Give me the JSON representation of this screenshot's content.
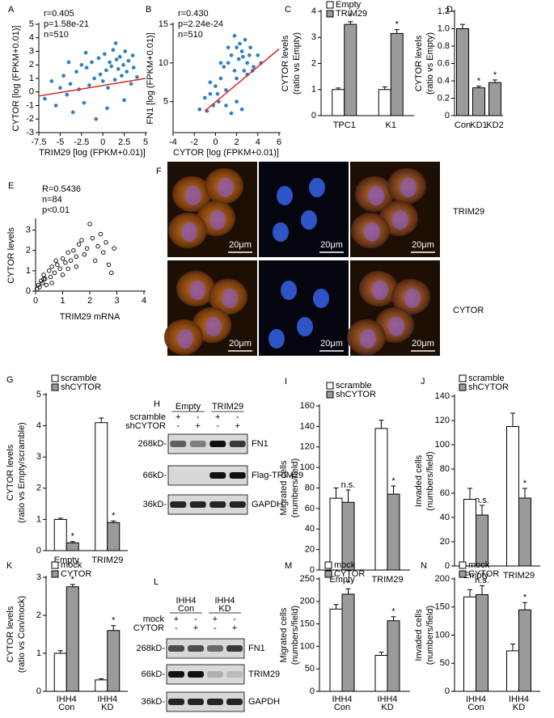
{
  "chart_data": [
    {
      "panel": "A",
      "type": "scatter",
      "annotations": [
        "r=0.405",
        "p=1.58e-21",
        "n=510"
      ],
      "xlabel": "TRIM29 [log (FPKM+0.01)]",
      "ylabel": [
        "CYTOR [log (FPKM+0.01)]"
      ],
      "x": [
        -6.8,
        -6,
        -5.5,
        -5,
        -4.6,
        -4.2,
        -3.8,
        -3.5,
        -3.1,
        -2.8,
        -2.5,
        -2.2,
        -1.9,
        -1.6,
        -1.3,
        -1,
        -0.8,
        -0.5,
        -0.3,
        0,
        0.2,
        0.4,
        0.6,
        0.8,
        1,
        1.2,
        1.4,
        1.6,
        1.8,
        2,
        2.2,
        2.4,
        2.6,
        2.8,
        3,
        3.3,
        3.6,
        4,
        -4,
        -2,
        0.5,
        1.5,
        2.5,
        3.5
      ],
      "y": [
        -0.5,
        0.8,
        -1,
        0.3,
        1.2,
        -0.2,
        0.6,
        -1.5,
        1.5,
        0.2,
        2,
        -0.8,
        1.8,
        0.5,
        2.2,
        1,
        -2,
        2.5,
        1.3,
        0.8,
        2.8,
        1.6,
        0.3,
        2.2,
        1.9,
        3.1,
        0.9,
        2.4,
        1.7,
        2.6,
        1.2,
        2,
        3,
        1.5,
        2.3,
        0.6,
        1.8,
        1.1,
        2.2,
        2.9,
        -1.2,
        3.6,
        -0.6,
        2.7
      ],
      "color": "#2f7fc1",
      "fit_x": [
        -7.5,
        5
      ],
      "fit_y": [
        -0.3,
        1
      ],
      "fit_color": "#e0252b",
      "xlim": [
        -7.5,
        5
      ],
      "xticks": [
        -7.5,
        -5,
        -2.5,
        0,
        2.5,
        5
      ],
      "ylim": [
        -3,
        5
      ],
      "yticks": [
        -3,
        -2,
        -1,
        0,
        1,
        2,
        3,
        4,
        5
      ]
    },
    {
      "panel": "B",
      "type": "scatter",
      "annotations": [
        "r=0.430",
        "p=2.24e-24",
        "n=510"
      ],
      "xlabel": "CYTOR [log (FPKM+0.01)]",
      "ylabel": [
        "FN1 [log (FPKM+0.01)]"
      ],
      "x": [
        -1.5,
        -1,
        -0.8,
        -0.5,
        -0.2,
        0,
        0.3,
        0.5,
        0.8,
        1,
        1.2,
        1.5,
        1.8,
        2,
        2.2,
        2.5,
        2.8,
        3,
        3.3,
        3.6,
        4,
        1,
        1.5,
        2,
        2.5,
        3,
        0.5,
        1.8,
        2.3,
        2.7,
        3.2,
        -0.5,
        0.2,
        1.2,
        2,
        2.6,
        3.5,
        4.3
      ],
      "y": [
        4,
        5.5,
        3.8,
        6,
        4.5,
        7,
        5,
        8,
        9.5,
        6.5,
        10,
        11,
        9,
        12,
        10.5,
        11.5,
        13,
        10,
        12,
        9.5,
        11,
        4.5,
        3.5,
        5,
        4,
        8.5,
        10,
        13.5,
        12.5,
        9,
        11,
        7.5,
        6,
        12,
        8,
        10.8,
        9,
        10
      ],
      "color": "#2f7fc1",
      "fit_x": [
        -1,
        6
      ],
      "fit_y": [
        3.8,
        11.8
      ],
      "fit_color": "#e0252b",
      "xlim": [
        -4,
        6
      ],
      "xticks": [
        -4,
        -2,
        0,
        2,
        4,
        6
      ],
      "ylim": [
        1,
        15
      ],
      "yticks": [
        5,
        10,
        15
      ]
    },
    {
      "panel": "C",
      "type": "bar",
      "ylabel": [
        "CYTOR levels",
        "(ratio vs Empty)"
      ],
      "categories": [
        "TPC1",
        "K1"
      ],
      "series": [
        {
          "name": "Empty",
          "color": "#ffffff",
          "values": [
            1,
            1
          ],
          "errors": [
            0.06,
            0.1
          ]
        },
        {
          "name": "TRIM29",
          "color": "#9a9a9a",
          "values": [
            3.5,
            3.15
          ],
          "errors": [
            0.1,
            0.15
          ],
          "sig": [
            "*",
            "*"
          ]
        }
      ],
      "ylim": [
        0,
        4
      ],
      "yticks": [
        0,
        1,
        2,
        3,
        4
      ]
    },
    {
      "panel": "D",
      "type": "bar",
      "ylabel": [
        "CYTOR levels",
        "(ratio vs Empty)"
      ],
      "categories": [
        "Con",
        "KD1",
        "KD2"
      ],
      "series": [
        {
          "color": "#9a9a9a",
          "values": [
            1,
            0.32,
            0.38
          ],
          "errors": [
            0.05,
            0.02,
            0.03
          ],
          "sig": [
            null,
            "*",
            "*"
          ]
        }
      ],
      "ylim": [
        0,
        1.2
      ],
      "yticks": [
        0,
        0.2,
        0.4,
        0.6,
        0.8,
        {
          "value": 1,
          "label": "1.0"
        },
        1.2
      ]
    },
    {
      "panel": "E",
      "type": "scatter",
      "annotations": [
        "R=0.5436",
        "n=84",
        "p<0.01"
      ],
      "xlabel": "TRIM29 mRNA",
      "ylabel": [
        "CYTOR levels"
      ],
      "x": [
        0.05,
        0.1,
        0.15,
        0.2,
        0.25,
        0.3,
        0.35,
        0.4,
        0.5,
        0.55,
        0.6,
        0.7,
        0.75,
        0.8,
        0.9,
        1,
        1,
        1.1,
        1.2,
        1.3,
        1.4,
        1.5,
        1.5,
        1.6,
        1.7,
        1.8,
        1.9,
        2,
        2.1,
        2.2,
        2.3,
        2.4,
        2.5,
        2.6,
        2.7,
        2.8,
        2.9,
        0.3,
        0.6,
        1.2
      ],
      "y": [
        0.1,
        0.3,
        0.2,
        0.5,
        0.4,
        0.8,
        0.6,
        0.3,
        1,
        0.7,
        1.2,
        0.9,
        1.5,
        1.3,
        1.1,
        1.6,
        0.8,
        1.4,
        1.9,
        1.5,
        2,
        1.2,
        1.7,
        2.3,
        2.5,
        1.8,
        2.1,
        3.3,
        2.6,
        1.5,
        2.2,
        2.8,
        1.9,
        2.4,
        1.3,
        0.9,
        2.1,
        0.6,
        0.4,
        1.1
      ],
      "color": "#000000",
      "hollow": true,
      "xlim": [
        0,
        4
      ],
      "xticks": [
        0,
        1,
        2,
        3,
        4
      ],
      "ylim": [
        0,
        3.5
      ],
      "yticks": [
        0,
        1,
        2,
        3
      ]
    },
    {
      "panel": "G",
      "type": "bar",
      "ylabel": [
        "CYTOR levels",
        "(ratio vs Empty/scramble)"
      ],
      "categories": [
        "Empty",
        "TRIM29"
      ],
      "series": [
        {
          "name": "scramble",
          "color": "#ffffff",
          "values": [
            1,
            4.1
          ],
          "errors": [
            0.04,
            0.15
          ]
        },
        {
          "name": "shCYTOR",
          "color": "#9a9a9a",
          "values": [
            0.25,
            0.9
          ],
          "errors": [
            0.04,
            0.05
          ],
          "sig": [
            "*",
            "*"
          ]
        }
      ],
      "ylim": [
        0,
        5
      ],
      "yticks": [
        0,
        1,
        2,
        3,
        4,
        5
      ]
    },
    {
      "panel": "I",
      "type": "bar",
      "ylabel": [
        "Migrated cells",
        "(numbers/field)"
      ],
      "categories": [
        "Empty",
        "TRIM29"
      ],
      "series": [
        {
          "name": "scramble",
          "color": "#ffffff",
          "values": [
            70,
            138
          ],
          "errors": [
            10,
            8
          ]
        },
        {
          "name": "shCYTOR",
          "color": "#9a9a9a",
          "values": [
            66,
            74
          ],
          "errors": [
            12,
            8
          ],
          "sig": [
            "n.s.",
            "*"
          ]
        }
      ],
      "ylim": [
        0,
        160
      ],
      "yticks": [
        0,
        20,
        40,
        60,
        80,
        100,
        120,
        140,
        160
      ]
    },
    {
      "panel": "J",
      "type": "bar",
      "ylabel": [
        "Invaded cells",
        "(numbers/field)"
      ],
      "categories": [
        "Empty",
        "TRIM29"
      ],
      "series": [
        {
          "name": "scramble",
          "color": "#ffffff",
          "values": [
            55,
            115
          ],
          "errors": [
            9,
            11
          ]
        },
        {
          "name": "shCYTOR",
          "color": "#9a9a9a",
          "values": [
            42,
            56
          ],
          "errors": [
            8,
            8
          ],
          "sig": [
            "n.s.",
            "*"
          ]
        }
      ],
      "ylim": [
        0,
        140
      ],
      "yticks": [
        0,
        20,
        40,
        60,
        80,
        100,
        120,
        140
      ]
    },
    {
      "panel": "K",
      "type": "bar",
      "ylabel": [
        "CYTOR levels",
        "(ratio vs Con/mock)"
      ],
      "categories": [
        [
          "IHH4",
          "Con"
        ],
        [
          "IHH4",
          "KD"
        ]
      ],
      "series": [
        {
          "name": "mock",
          "color": "#ffffff",
          "values": [
            1,
            0.3
          ],
          "errors": [
            0.07,
            0.03
          ]
        },
        {
          "name": "CYTOR",
          "color": "#9a9a9a",
          "values": [
            2.75,
            1.6
          ],
          "errors": [
            0.06,
            0.13
          ],
          "sig": [
            "*",
            "*"
          ]
        }
      ],
      "ylim": [
        0,
        3
      ],
      "yticks": [
        0,
        1,
        2,
        3
      ]
    },
    {
      "panel": "M",
      "type": "bar",
      "ylabel": [
        "Migrated cells",
        "(numbers/field)"
      ],
      "categories": [
        [
          "IHH4",
          "Con"
        ],
        [
          "IHH4",
          "KD"
        ]
      ],
      "series": [
        {
          "name": "mock",
          "color": "#ffffff",
          "values": [
            183,
            80
          ],
          "errors": [
            10,
            7
          ]
        },
        {
          "name": "CYTOR",
          "color": "#9a9a9a",
          "values": [
            216,
            157
          ],
          "errors": [
            12,
            9
          ],
          "sig": [
            "*",
            "*"
          ]
        }
      ],
      "ylim": [
        0,
        250
      ],
      "yticks": [
        0,
        50,
        100,
        150,
        200,
        250
      ]
    },
    {
      "panel": "N",
      "type": "bar",
      "ylabel": [
        "Invaded cells",
        "(numbers/field)"
      ],
      "categories": [
        [
          "IHH4",
          "Con"
        ],
        [
          "IHH4",
          "KD"
        ]
      ],
      "series": [
        {
          "name": "mock",
          "color": "#ffffff",
          "values": [
            168,
            72
          ],
          "errors": [
            13,
            12
          ]
        },
        {
          "name": "CYTOR",
          "color": "#9a9a9a",
          "values": [
            172,
            145
          ],
          "errors": [
            16,
            13
          ],
          "sig": [
            "n.s.",
            "*"
          ]
        }
      ],
      "ylim": [
        0,
        200
      ],
      "yticks": [
        0,
        50,
        100,
        150,
        200
      ]
    }
  ],
  "images": {
    "panel": "F",
    "rows": [
      "TRIM29",
      "CYTOR"
    ],
    "scale_bar": "20μm"
  },
  "blots": [
    {
      "panel": "H",
      "groups": [
        "Empty",
        "TRIM29"
      ],
      "conditions": [
        {
          "name": "scramble",
          "signs": [
            "+",
            "-",
            "+",
            "-"
          ]
        },
        {
          "name": "shCYTOR",
          "signs": [
            "-",
            "+",
            "-",
            "+"
          ]
        }
      ],
      "bands": [
        {
          "size": "268kD-",
          "name": "FN1"
        },
        {
          "size": "66kD-",
          "name": "Flag-TRIM29"
        },
        {
          "size": "36kD-",
          "name": "GAPDH"
        }
      ]
    },
    {
      "panel": "L",
      "groups": [
        [
          "IHH4",
          "Con"
        ],
        [
          "IHH4",
          "KD"
        ]
      ],
      "conditions": [
        {
          "name": "mock",
          "signs": [
            "+",
            "-",
            "+",
            "-"
          ]
        },
        {
          "name": "CYTOR",
          "signs": [
            "-",
            "+",
            "-",
            "+"
          ]
        }
      ],
      "bands": [
        {
          "size": "268kD-",
          "name": "FN1"
        },
        {
          "size": "66kD-",
          "name": "TRIM29"
        },
        {
          "size": "36kD-",
          "name": "GAPDH"
        }
      ]
    }
  ]
}
